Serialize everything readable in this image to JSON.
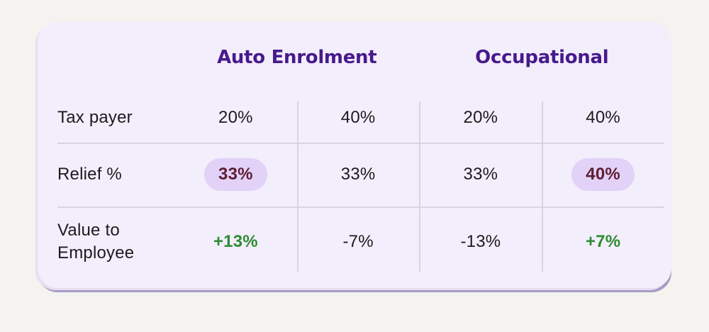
{
  "chart_data": {
    "type": "table",
    "column_groups": [
      {
        "name": "Auto Enrolment",
        "span": 2
      },
      {
        "name": "Occupational",
        "span": 2
      }
    ],
    "rows": [
      {
        "label": "Tax payer",
        "values": [
          "20%",
          "40%",
          "20%",
          "40%"
        ]
      },
      {
        "label": "Relief %",
        "values": [
          "33%",
          "33%",
          "33%",
          "40%"
        ],
        "highlighted_indices": [
          0,
          3
        ]
      },
      {
        "label": "Value to Employee",
        "values": [
          "+13%",
          "-7%",
          "-13%",
          "+7%"
        ],
        "positive_indices": [
          0,
          3
        ]
      }
    ],
    "layout_hints": {
      "header_row": "group labels span two tax-payer columns each",
      "grid": "light divider lines between value columns and between rows"
    }
  },
  "colors": {
    "page_background": "#f4f3f0",
    "card_background": "#f3eefb",
    "card_shadow": "#a99cc5",
    "header_text": "#471a8c",
    "body_text": "#1c1b1f",
    "pill_background": "#e2d2f7",
    "pill_text": "#5f1d33",
    "positive_text": "#2e8b33",
    "divider": "#d9d1e3"
  }
}
